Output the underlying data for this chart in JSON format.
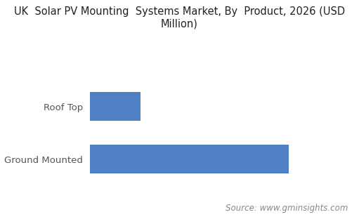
{
  "title_line1": "UK  Solar PV Mounting  Systems Market, By  Product, 2026 (USD",
  "title_line2": "Million)",
  "categories": [
    "Ground Mounted",
    "Roof Top"
  ],
  "values": [
    78,
    20
  ],
  "bar_color": "#4f7fc4",
  "background_color": "#ffffff",
  "source_text": "Source: www.gminsights.com",
  "title_fontsize": 10.5,
  "label_fontsize": 9.5,
  "source_fontsize": 8.5,
  "bar_height": 0.55,
  "xlim": 100
}
